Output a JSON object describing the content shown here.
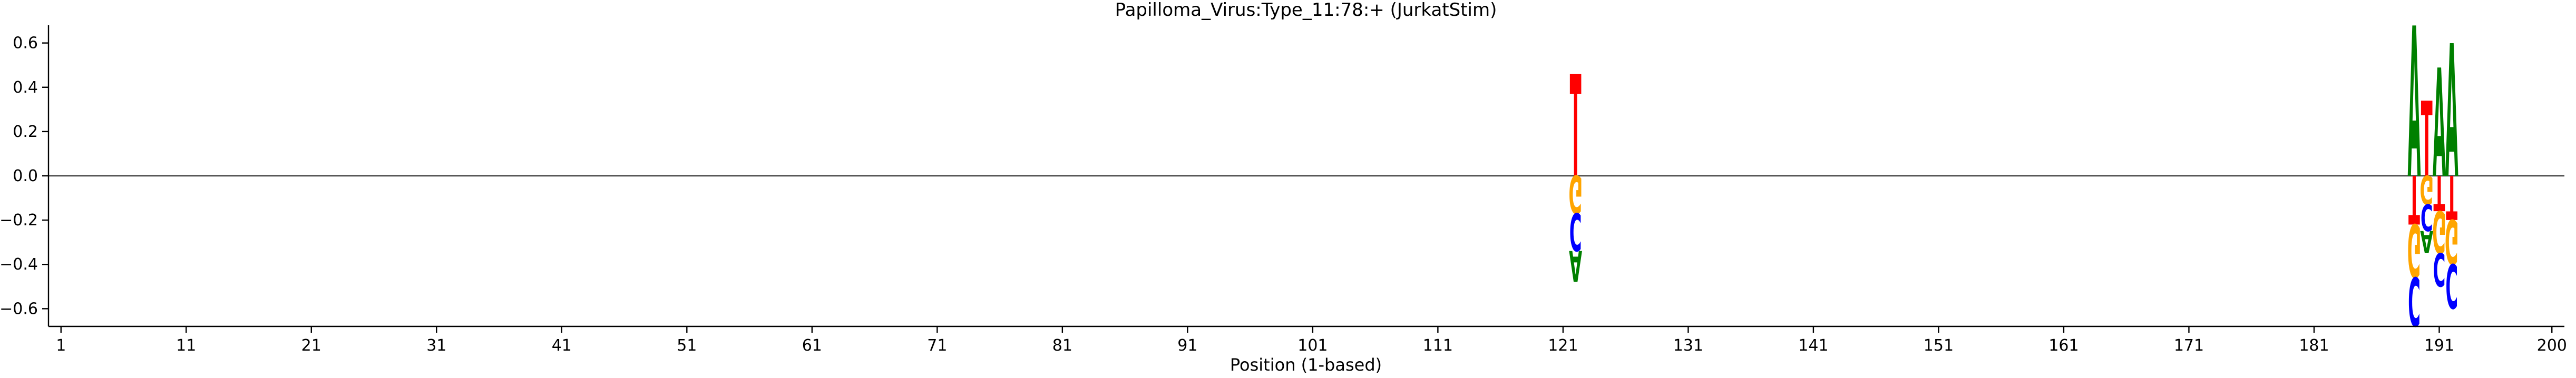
{
  "chart_data": {
    "type": "sequence-logo",
    "title": "Papilloma_Virus:Type_11:78:+  (JurkatStim)",
    "xlabel": "Position (1-based)",
    "ylabel": "",
    "xlim": [
      0,
      201
    ],
    "ylim": [
      -0.68,
      0.68
    ],
    "x_ticks": [
      1,
      11,
      21,
      31,
      41,
      51,
      61,
      71,
      81,
      91,
      101,
      111,
      121,
      131,
      141,
      151,
      161,
      171,
      181,
      191,
      200
    ],
    "y_ticks": [
      -0.6,
      -0.4,
      -0.2,
      0.0,
      0.2,
      0.4,
      0.6
    ],
    "y_tick_labels": [
      "−0.6",
      "−0.4",
      "−0.2",
      "0.0",
      "0.2",
      "0.4",
      "0.6"
    ],
    "base_colors": {
      "A": "#008000",
      "C": "#0000ff",
      "G": "#ffa500",
      "T": "#ff0000"
    },
    "positions": [
      {
        "pos": 122,
        "stacks": [
          {
            "base": "T",
            "from": 0.0,
            "to": 0.46
          },
          {
            "base": "G",
            "from": 0.0,
            "to": -0.17
          },
          {
            "base": "C",
            "from": -0.17,
            "to": -0.34
          },
          {
            "base": "A",
            "from": -0.34,
            "to": -0.48
          }
        ]
      },
      {
        "pos": 189,
        "stacks": [
          {
            "base": "A",
            "from": 0.0,
            "to": 0.68
          },
          {
            "base": "T",
            "from": 0.0,
            "to": -0.22
          },
          {
            "base": "G",
            "from": -0.22,
            "to": -0.46
          },
          {
            "base": "C",
            "from": -0.46,
            "to": -0.68
          }
        ]
      },
      {
        "pos": 190,
        "stacks": [
          {
            "base": "T",
            "from": 0.0,
            "to": 0.34
          },
          {
            "base": "G",
            "from": 0.0,
            "to": -0.13
          },
          {
            "base": "C",
            "from": -0.13,
            "to": -0.25
          },
          {
            "base": "A",
            "from": -0.25,
            "to": -0.35
          }
        ]
      },
      {
        "pos": 191,
        "stacks": [
          {
            "base": "A",
            "from": 0.0,
            "to": 0.49
          },
          {
            "base": "T",
            "from": 0.0,
            "to": -0.16
          },
          {
            "base": "G",
            "from": -0.16,
            "to": -0.35
          },
          {
            "base": "C",
            "from": -0.35,
            "to": -0.5
          }
        ]
      },
      {
        "pos": 192,
        "stacks": [
          {
            "base": "A",
            "from": 0.0,
            "to": 0.6
          },
          {
            "base": "T",
            "from": 0.0,
            "to": -0.2
          },
          {
            "base": "G",
            "from": -0.2,
            "to": -0.4
          },
          {
            "base": "C",
            "from": -0.4,
            "to": -0.6
          }
        ]
      }
    ]
  }
}
